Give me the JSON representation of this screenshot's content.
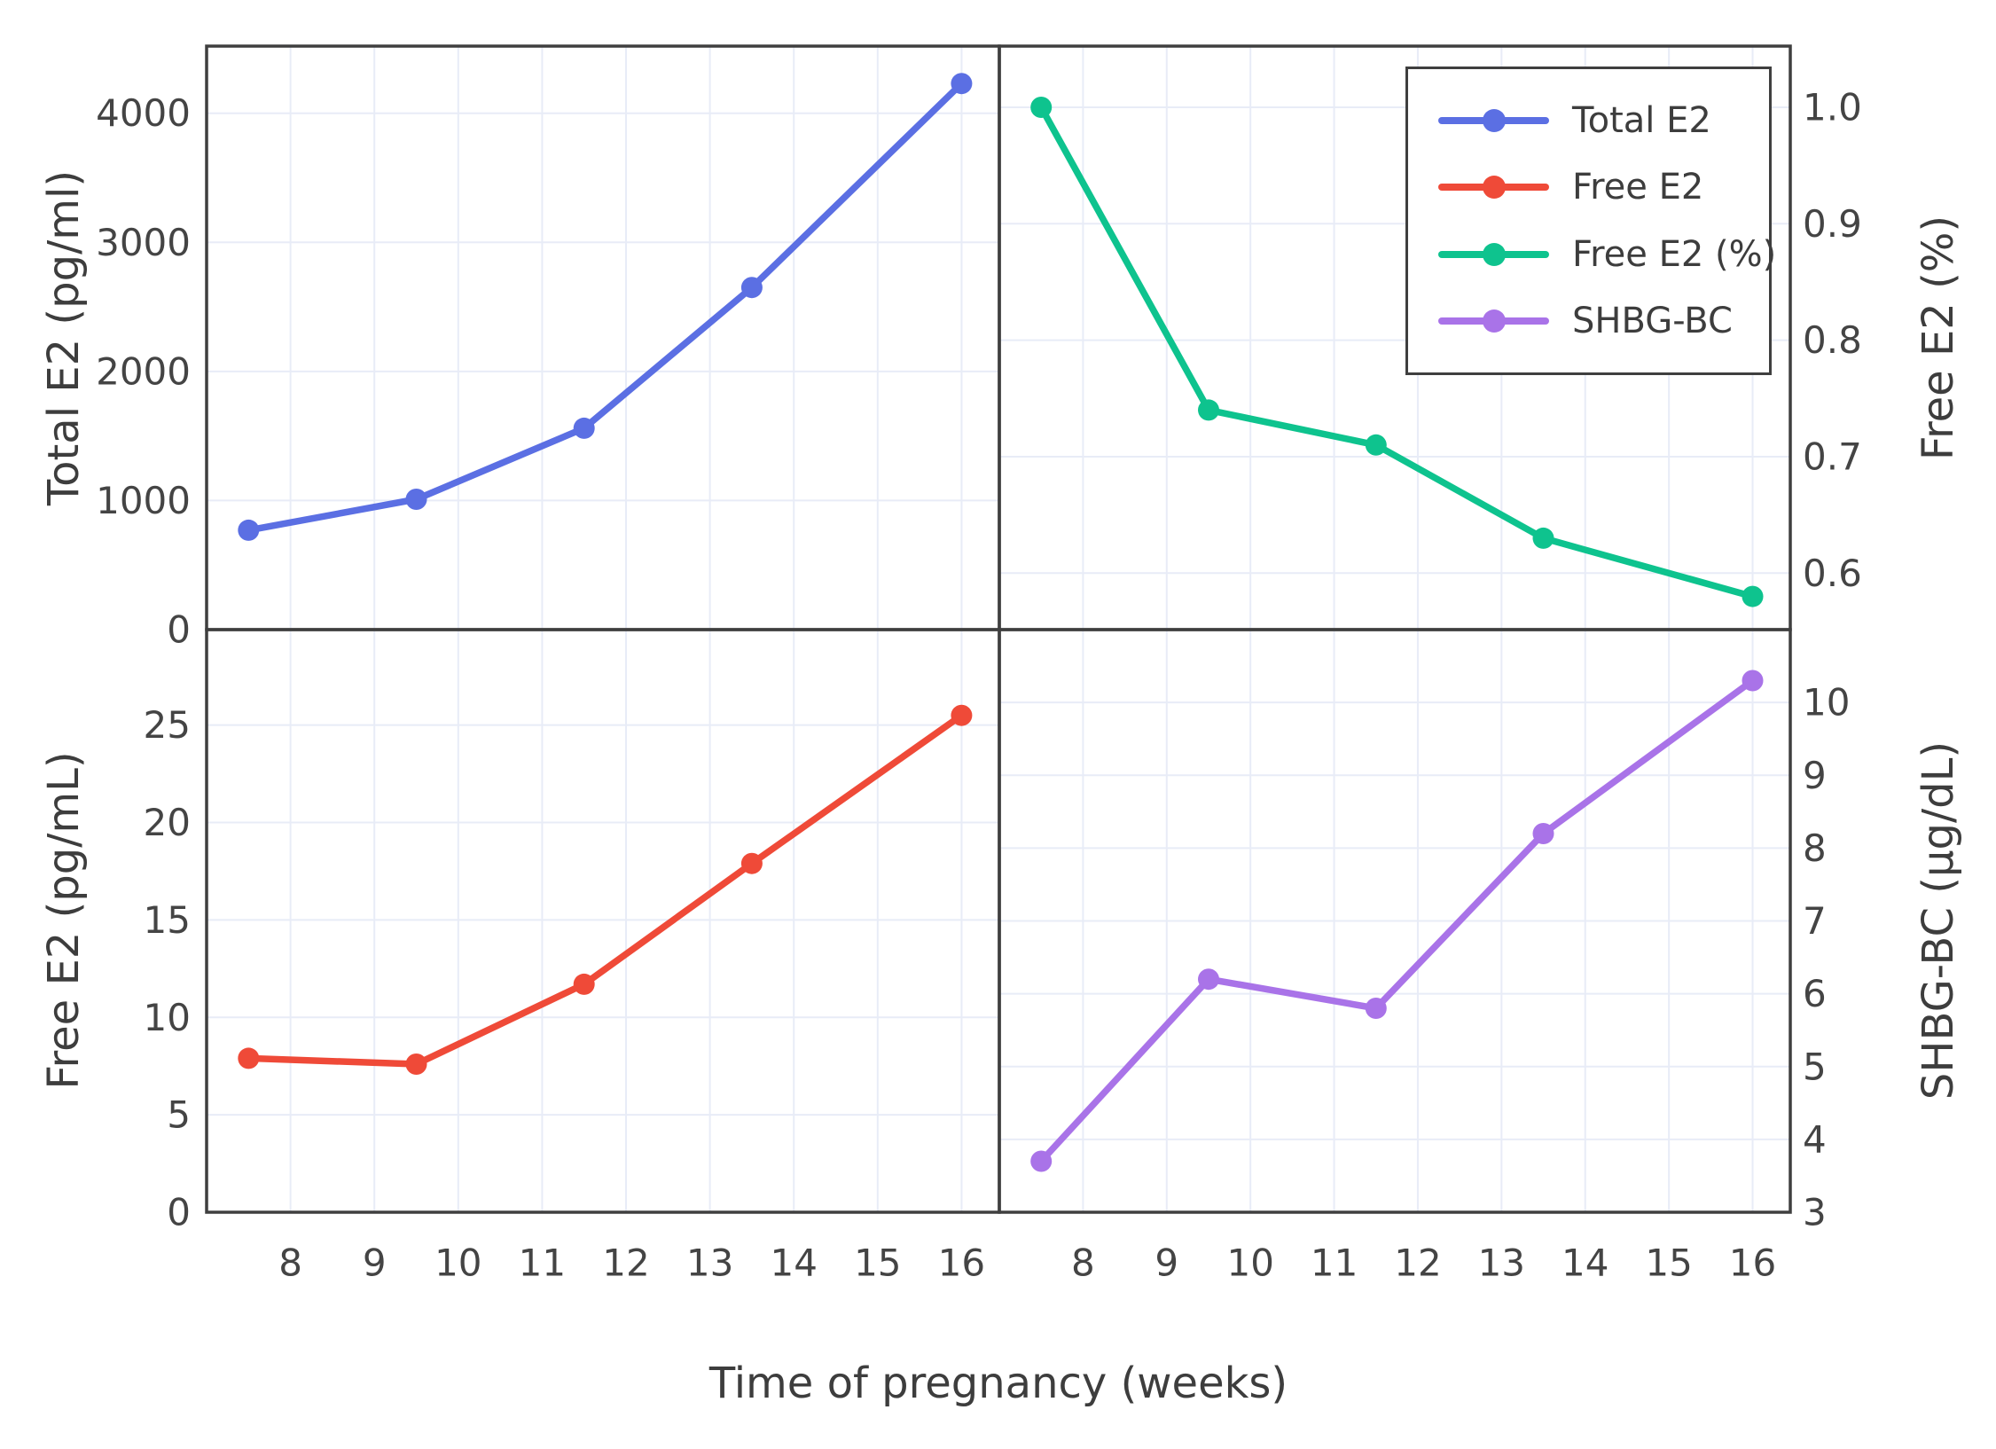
{
  "figure": {
    "background": "#ffffff",
    "axis_color": "#3f3f3f",
    "grid_color": "#e8ecf7",
    "tick_text_color": "#444444",
    "title_text_color": "#3d3d3d"
  },
  "chart_data": {
    "type": "line",
    "layout": "2x2-grid",
    "xlabel": "Time of pregnancy (weeks)",
    "x": [
      7.5,
      9.5,
      11.5,
      13.5,
      16
    ],
    "xticks": [
      8,
      9,
      10,
      11,
      12,
      13,
      14,
      15,
      16
    ],
    "xtick_labels": [
      "8",
      "9",
      "10",
      "11",
      "12",
      "13",
      "14",
      "15",
      "16"
    ],
    "xlim": [
      7,
      16.45
    ],
    "grid": true,
    "panels": [
      {
        "id": "total-e2",
        "position": "top-left",
        "ylabel": "Total E2 (pg/ml)",
        "ylabel_side": "left",
        "series_name": "Total E2",
        "color": "#5b6fe3",
        "values": [
          770,
          1010,
          1560,
          2650,
          4230
        ],
        "yticks": [
          0,
          1000,
          2000,
          3000,
          4000
        ],
        "ytick_labels": [
          "0",
          "1000",
          "2000",
          "3000",
          "4000"
        ],
        "ylim": [
          0,
          4520
        ]
      },
      {
        "id": "free-e2-pct",
        "position": "top-right",
        "ylabel": "Free E2 (%)",
        "ylabel_side": "right",
        "series_name": "Free E2 (%)",
        "color": "#0ec38e",
        "values": [
          1.0,
          0.74,
          0.71,
          0.63,
          0.58
        ],
        "yticks": [
          0.6,
          0.7,
          0.8,
          0.9,
          1.0
        ],
        "ytick_labels": [
          "0.6",
          "0.7",
          "0.8",
          "0.9",
          "1.0"
        ],
        "ylim": [
          0.5515,
          1.0525
        ]
      },
      {
        "id": "free-e2",
        "position": "bottom-left",
        "ylabel": "Free E2 (pg/mL)",
        "ylabel_side": "left",
        "series_name": "Free E2",
        "color": "#ef4a38",
        "values": [
          7.9,
          7.6,
          11.7,
          17.9,
          25.5
        ],
        "yticks": [
          0,
          5,
          10,
          15,
          20,
          25
        ],
        "ytick_labels": [
          "0",
          "5",
          "10",
          "15",
          "20",
          "25"
        ],
        "ylim": [
          0,
          29.9
        ]
      },
      {
        "id": "shbg-bc",
        "position": "bottom-right",
        "ylabel": "SHBG-BC (µg/dL)",
        "ylabel_side": "right",
        "series_name": "SHBG-BC",
        "color": "#a973e8",
        "values": [
          3.7,
          6.2,
          5.8,
          8.2,
          10.3
        ],
        "yticks": [
          3,
          4,
          5,
          6,
          7,
          8,
          9,
          10
        ],
        "ytick_labels": [
          "3",
          "4",
          "5",
          "6",
          "7",
          "8",
          "9",
          "10"
        ],
        "ylim": [
          3,
          11.0
        ]
      }
    ],
    "legend": {
      "location": "upper-right-of-top-right-panel",
      "items": [
        {
          "label": "Total E2",
          "color": "#5b6fe3"
        },
        {
          "label": "Free E2",
          "color": "#ef4a38"
        },
        {
          "label": "Free E2 (%)",
          "color": "#0ec38e"
        },
        {
          "label": "SHBG-BC",
          "color": "#a973e8"
        }
      ]
    }
  }
}
